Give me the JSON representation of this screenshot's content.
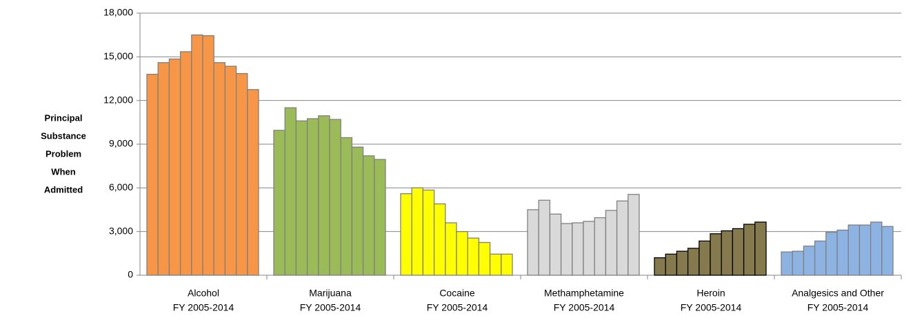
{
  "chart_data": {
    "type": "grouped_bar",
    "y_label_lines": [
      "Principal",
      "Substance",
      "Problem",
      "When",
      "Admitted"
    ],
    "categories": [
      [
        "Alcohol",
        "FY 2005-2014"
      ],
      [
        "Marijuana",
        "FY 2005-2014"
      ],
      [
        "Cocaine",
        "FY 2005-2014"
      ],
      [
        "Methamphetamine",
        "FY 2005-2014"
      ],
      [
        "Heroin",
        "FY 2005-2014"
      ],
      [
        "Analgesics and Other",
        "FY 2005-2014"
      ]
    ],
    "colors": [
      "#f79646",
      "#9bbb59",
      "#ffff00",
      "#d9d9d9",
      "#857a4d",
      "#8db3e2"
    ],
    "edge_colors": [
      "#7f7f7f",
      "#7f7f7f",
      "#7f7f7f",
      "#7f7f7f",
      "#000000",
      "#7f7f7f"
    ],
    "values": [
      [
        13800,
        14600,
        14850,
        15350,
        16500,
        16450,
        14600,
        14350,
        13850,
        12750
      ],
      [
        9950,
        11500,
        10600,
        10750,
        10950,
        10700,
        9450,
        8800,
        8200,
        7950
      ],
      [
        5600,
        6000,
        5850,
        4900,
        3600,
        3000,
        2550,
        2250,
        1450,
        1450
      ],
      [
        4500,
        5150,
        4200,
        3550,
        3600,
        3700,
        3950,
        4450,
        5100,
        5550
      ],
      [
        1200,
        1450,
        1650,
        1850,
        2350,
        2850,
        3050,
        3200,
        3500,
        3650
      ],
      [
        1600,
        1650,
        2000,
        2350,
        2950,
        3100,
        3450,
        3450,
        3650,
        3350
      ]
    ],
    "ylim": [
      0,
      18000
    ],
    "yticks": [
      0,
      {
        "value": 3000,
        "label": "3,000"
      },
      {
        "value": 6000,
        "label": "6,000"
      },
      {
        "value": 9000,
        "label": "9,000"
      },
      {
        "value": 12000,
        "label": "12,000"
      },
      {
        "value": 15000,
        "label": "15,000"
      },
      {
        "value": 18000,
        "label": "18,000"
      }
    ],
    "grid": true
  }
}
